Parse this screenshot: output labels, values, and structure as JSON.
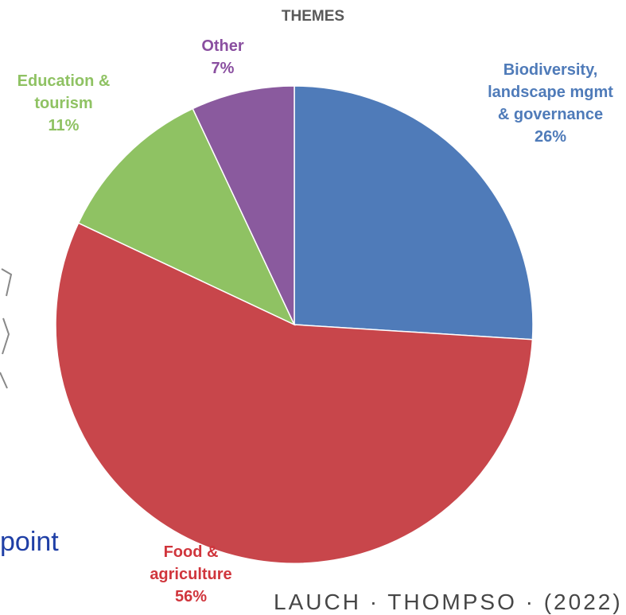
{
  "chart_data": {
    "type": "pie",
    "title": "THEMES",
    "slices": [
      {
        "name": "Biodiversity, landscape mgmt & governance",
        "label": "Biodiversity,\nlandscape mgmt\n& governance",
        "value": 26,
        "value_label": "26%",
        "color": "#4f7bb9"
      },
      {
        "name": "Food & agriculture",
        "label": "Food &\nagriculture",
        "value": 56,
        "value_label": "56%",
        "color": "#c8464b"
      },
      {
        "name": "Education & tourism",
        "label": "Education &\ntourism",
        "value": 11,
        "value_label": "11%",
        "color": "#8fc263"
      },
      {
        "name": "Other",
        "label": "Other",
        "value": 7,
        "value_label": "7%",
        "color": "#8a5a9e"
      }
    ]
  },
  "background_text": {
    "left": "point",
    "bottom": "LAUCH · THOMPSO · (2022)"
  }
}
